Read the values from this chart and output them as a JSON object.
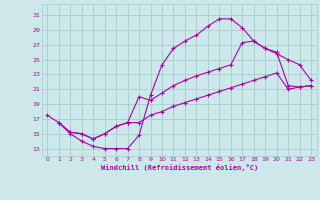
{
  "xlabel": "Windchill (Refroidissement éolien,°C)",
  "xlim": [
    -0.5,
    23.5
  ],
  "ylim": [
    12.0,
    32.5
  ],
  "xtick_vals": [
    0,
    1,
    2,
    3,
    4,
    5,
    6,
    7,
    8,
    9,
    10,
    11,
    12,
    13,
    14,
    15,
    16,
    17,
    18,
    19,
    20,
    21,
    22,
    23
  ],
  "ytick_vals": [
    13,
    15,
    17,
    19,
    21,
    23,
    25,
    27,
    29,
    31
  ],
  "bg_color": "#cde8e8",
  "grid_color": "#a8cccc",
  "line_color": "#aa00aa",
  "c1_x": [
    0,
    1,
    2,
    3,
    4,
    5,
    6,
    7,
    8,
    9,
    10,
    11,
    12,
    13,
    14,
    15,
    16,
    17,
    18,
    19,
    20,
    21,
    22,
    23
  ],
  "c1_y": [
    17.5,
    16.5,
    15.0,
    14.0,
    13.3,
    13.0,
    13.0,
    13.0,
    14.8,
    20.2,
    24.3,
    26.5,
    27.5,
    28.3,
    29.5,
    30.5,
    30.5,
    29.3,
    27.5,
    26.5,
    25.8,
    25.0,
    24.3,
    22.2
  ],
  "c2_x": [
    1,
    2,
    3,
    4,
    5,
    6,
    7,
    8,
    9,
    10,
    11,
    12,
    13,
    14,
    15,
    16,
    17,
    18,
    19,
    20,
    21,
    22,
    23
  ],
  "c2_y": [
    16.5,
    15.2,
    15.0,
    14.3,
    15.0,
    16.0,
    16.5,
    20.0,
    19.5,
    20.5,
    21.5,
    22.2,
    22.8,
    23.3,
    23.8,
    24.3,
    27.3,
    27.5,
    26.5,
    26.0,
    21.5,
    21.3,
    21.5
  ],
  "c3_x": [
    1,
    2,
    3,
    4,
    5,
    6,
    7,
    8,
    9,
    10,
    11,
    12,
    13,
    14,
    15,
    16,
    17,
    18,
    19,
    20,
    21,
    22,
    23
  ],
  "c3_y": [
    16.5,
    15.2,
    15.0,
    14.3,
    15.0,
    16.0,
    16.5,
    16.5,
    17.5,
    18.0,
    18.7,
    19.2,
    19.7,
    20.2,
    20.7,
    21.2,
    21.7,
    22.2,
    22.7,
    23.2,
    21.0,
    21.3,
    21.5
  ]
}
